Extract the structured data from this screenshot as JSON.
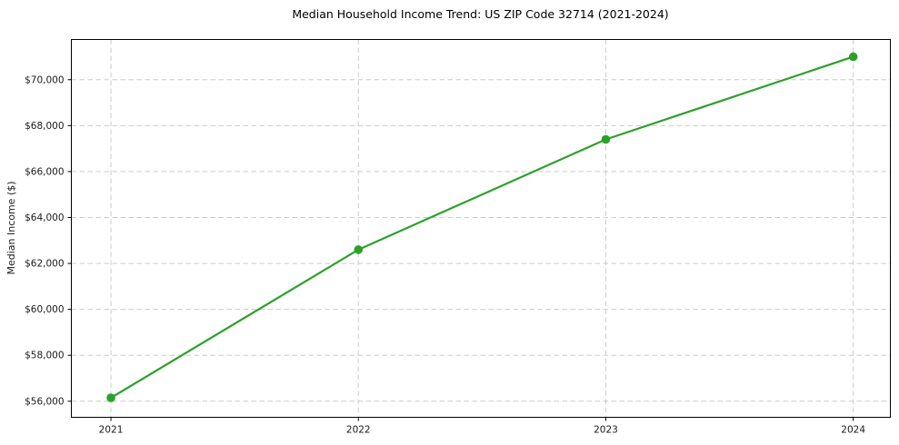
{
  "chart_data": {
    "type": "line",
    "title": "Median Household Income Trend: US ZIP Code 32714 (2021-2024)",
    "xlabel": "",
    "ylabel": "Median Income ($)",
    "x": [
      2021,
      2022,
      2023,
      2024
    ],
    "x_tick_labels": [
      "2021",
      "2022",
      "2023",
      "2024"
    ],
    "y_ticks": [
      56000,
      58000,
      60000,
      62000,
      64000,
      66000,
      68000,
      70000
    ],
    "y_tick_labels": [
      "$56,000",
      "$58,000",
      "$60,000",
      "$62,000",
      "$64,000",
      "$66,000",
      "$68,000",
      "$70,000"
    ],
    "series": [
      {
        "name": "Median Household Income",
        "values": [
          56150,
          62600,
          67400,
          71000
        ],
        "color": "#2ca02c",
        "marker": "circle"
      }
    ],
    "xlim": [
      2020.84,
      2024.15
    ],
    "ylim": [
      55300,
      71750
    ],
    "grid": true,
    "grid_style": "dashed",
    "grid_color": "#cccccc",
    "axis_color": "#000000",
    "background_color": "#ffffff",
    "legend_position": "none"
  }
}
